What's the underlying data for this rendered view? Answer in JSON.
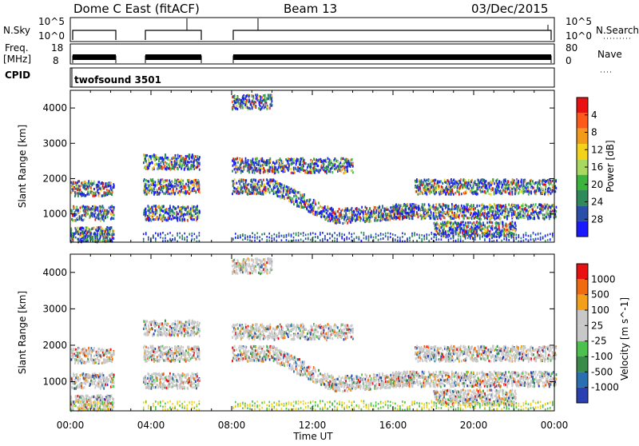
{
  "header": {
    "station": "Dome C East (fitACF)",
    "beam": "Beam 13",
    "date": "03/Dec/2015"
  },
  "nsky_panel": {
    "left_label": "N.Sky",
    "left_ticks": [
      "10^5",
      "10^0"
    ],
    "right_label": "N.Search",
    "right_ticks": [
      "10^5",
      "10^0"
    ]
  },
  "freq_panel": {
    "left_label_1": "Freq.",
    "left_label_2": "[MHz]",
    "left_ticks": [
      "18",
      "8"
    ],
    "right_label": "Nave",
    "right_ticks": [
      "80",
      "0"
    ]
  },
  "cpid": {
    "label": "CPID",
    "value": "twofsound 3501"
  },
  "x_axis": {
    "label": "Time UT",
    "ticks": [
      "00:00",
      "04:00",
      "08:00",
      "12:00",
      "16:00",
      "20:00",
      "00:00"
    ]
  },
  "colors": {
    "power": [
      "#1a1aff",
      "#2a4fa8",
      "#2f8a5a",
      "#3cb33c",
      "#a8d860",
      "#f2d21a",
      "#f29a1a",
      "#ff5a1a",
      "#e81010"
    ],
    "velocity": [
      "#2a3fb0",
      "#2a6fb0",
      "#3a8a4a",
      "#4dc04d",
      "#c8c8c8",
      "#c8c8c8",
      "#f2a01a",
      "#f06a10",
      "#e81010"
    ]
  },
  "chart_data": [
    {
      "type": "heatmap",
      "title": "",
      "xlabel": "",
      "ylabel": "Slant Range [km]",
      "xlim": [
        0,
        24
      ],
      "ylim": [
        200,
        4500
      ],
      "yticks": [
        "1000",
        "2000",
        "3000",
        "4000"
      ],
      "colorbar": {
        "label": "Power [dB]",
        "ticks": [
          "4",
          "8",
          "12",
          "16",
          "20",
          "24",
          "28"
        ]
      },
      "data_gaps_hours": [
        [
          2.1,
          3.6
        ],
        [
          6.4,
          8.0
        ]
      ],
      "echo_bands": [
        {
          "start_h": 0.0,
          "end_h": 2.1,
          "range_km": 1750
        },
        {
          "start_h": 0.0,
          "end_h": 2.1,
          "range_km": 1050
        },
        {
          "start_h": 0.0,
          "end_h": 2.1,
          "range_km": 450
        },
        {
          "start_h": 3.6,
          "end_h": 6.4,
          "range_km": 1800
        },
        {
          "start_h": 3.6,
          "end_h": 6.4,
          "range_km": 2500
        },
        {
          "start_h": 3.6,
          "end_h": 6.4,
          "range_km": 1050
        },
        {
          "start_h": 8.0,
          "end_h": 24.0,
          "range_km": 1800
        },
        {
          "start_h": 8.0,
          "end_h": 14.0,
          "range_km": 2400
        },
        {
          "start_h": 8.0,
          "end_h": 10.0,
          "range_km": 4200
        },
        {
          "start_h": 16.0,
          "end_h": 24.0,
          "range_km": 1100
        },
        {
          "start_h": 18.0,
          "end_h": 22.0,
          "range_km": 600
        }
      ]
    },
    {
      "type": "heatmap",
      "title": "",
      "xlabel": "Time UT",
      "ylabel": "Slant Range [km]",
      "xlim": [
        0,
        24
      ],
      "ylim": [
        200,
        4500
      ],
      "yticks": [
        "1000",
        "2000",
        "3000",
        "4000"
      ],
      "colorbar": {
        "label": "Velocity [m s^-1]",
        "ticks": [
          "1000",
          "500",
          "100",
          "25",
          "-25",
          "-100",
          "-500",
          "-1000"
        ]
      },
      "data_gaps_hours": [
        [
          2.1,
          3.6
        ],
        [
          6.4,
          8.0
        ]
      ]
    }
  ]
}
